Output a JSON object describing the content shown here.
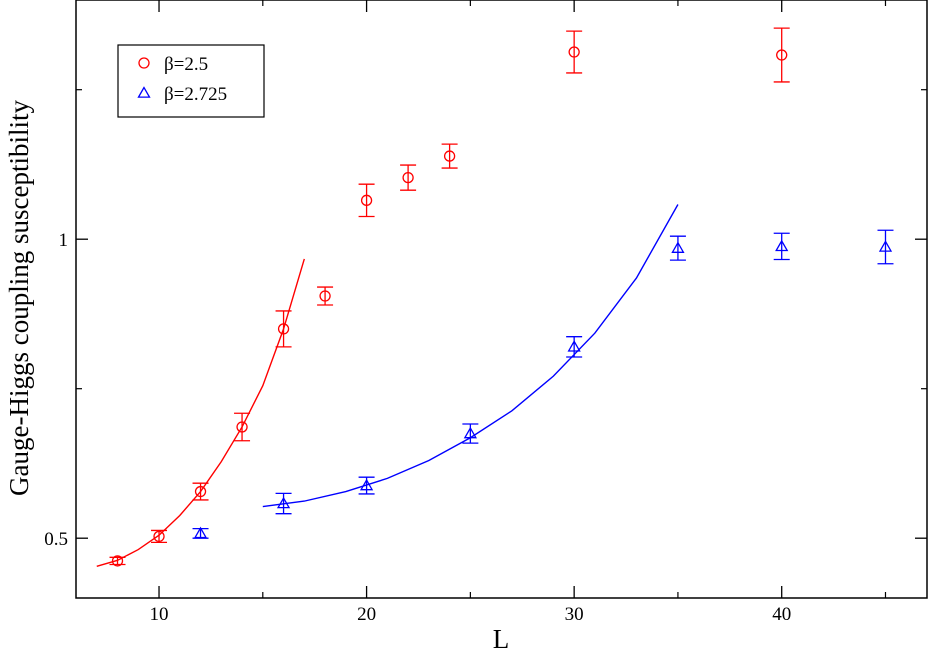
{
  "chart_data": {
    "type": "scatter",
    "title": "",
    "xlabel": "L",
    "ylabel": "Gauge-Higgs coupling susceptibility",
    "xlim": [
      6,
      47
    ],
    "ylim": [
      0.4,
      1.4
    ],
    "xticks": [
      10,
      20,
      30,
      40
    ],
    "yticks": [
      0.5,
      1
    ],
    "xtick_labels": [
      "10",
      "20",
      "30",
      "40"
    ],
    "ytick_labels": [
      "0.5",
      "1"
    ],
    "grid": false,
    "legend_position": "top-left",
    "series": [
      {
        "name": "β=2.5",
        "marker": "circle",
        "color": "#ff0000",
        "points": [
          {
            "x": 8,
            "y": 0.462,
            "err": 0.006
          },
          {
            "x": 10,
            "y": 0.503,
            "err": 0.01
          },
          {
            "x": 12,
            "y": 0.578,
            "err": 0.014
          },
          {
            "x": 14,
            "y": 0.686,
            "err": 0.023
          },
          {
            "x": 16,
            "y": 0.85,
            "err": 0.03
          },
          {
            "x": 18,
            "y": 0.905,
            "err": 0.015
          },
          {
            "x": 20,
            "y": 1.065,
            "err": 0.027
          },
          {
            "x": 22,
            "y": 1.103,
            "err": 0.021
          },
          {
            "x": 24,
            "y": 1.139,
            "err": 0.02
          },
          {
            "x": 30,
            "y": 1.313,
            "err": 0.035
          },
          {
            "x": 40,
            "y": 1.308,
            "err": 0.045
          }
        ],
        "fit": {
          "x": [
            7.0,
            8.0,
            9.0,
            10.0,
            11.0,
            12.0,
            13.0,
            14.0,
            15.0,
            16.0,
            17.0
          ],
          "y": [
            0.453,
            0.463,
            0.481,
            0.505,
            0.538,
            0.578,
            0.628,
            0.686,
            0.755,
            0.85,
            0.967
          ]
        }
      },
      {
        "name": "β=2.725",
        "marker": "triangle",
        "color": "#0000ff",
        "points": [
          {
            "x": 12,
            "y": 0.508,
            "err": 0.008
          },
          {
            "x": 16,
            "y": 0.558,
            "err": 0.017
          },
          {
            "x": 20,
            "y": 0.588,
            "err": 0.014
          },
          {
            "x": 25,
            "y": 0.675,
            "err": 0.016
          },
          {
            "x": 30,
            "y": 0.82,
            "err": 0.017
          },
          {
            "x": 35,
            "y": 0.985,
            "err": 0.02
          },
          {
            "x": 40,
            "y": 0.988,
            "err": 0.022
          },
          {
            "x": 45,
            "y": 0.987,
            "err": 0.028
          }
        ],
        "fit": {
          "x": [
            15.0,
            17.0,
            19.0,
            21.0,
            23.0,
            25.0,
            27.0,
            29.0,
            31.0,
            33.0,
            35.0
          ],
          "y": [
            0.553,
            0.562,
            0.578,
            0.6,
            0.63,
            0.668,
            0.713,
            0.771,
            0.843,
            0.935,
            1.058
          ]
        }
      }
    ]
  }
}
